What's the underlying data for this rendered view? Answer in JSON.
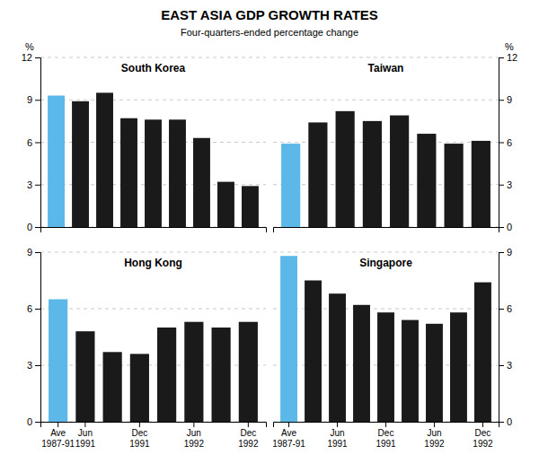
{
  "title": "EAST ASIA GDP GROWTH RATES",
  "subtitle": "Four-quarters-ended percentage change",
  "chart_data": [
    {
      "type": "bar",
      "title": "South Korea",
      "ylabel": "%",
      "categories": [
        null,
        null,
        null,
        null,
        null,
        null,
        null,
        null,
        null
      ],
      "values": [
        9.3,
        8.9,
        9.5,
        7.7,
        7.6,
        7.6,
        6.3,
        3.2,
        2.9
      ],
      "colors": [
        "#5bb8e8",
        "#1a1a1a",
        "#1a1a1a",
        "#1a1a1a",
        "#1a1a1a",
        "#1a1a1a",
        "#1a1a1a",
        "#1a1a1a",
        "#1a1a1a"
      ],
      "ylim": [
        0,
        12
      ],
      "yticks": [
        0,
        3,
        6,
        9,
        12
      ],
      "grid": true,
      "tick_labels": "y"
    },
    {
      "type": "bar",
      "title": "Taiwan",
      "ylabel": "%",
      "categories": [
        null,
        null,
        null,
        null,
        null,
        null,
        null,
        null
      ],
      "values": [
        5.9,
        7.4,
        8.2,
        7.5,
        7.9,
        6.6,
        5.9,
        6.1
      ],
      "colors": [
        "#5bb8e8",
        "#1a1a1a",
        "#1a1a1a",
        "#1a1a1a",
        "#1a1a1a",
        "#1a1a1a",
        "#1a1a1a",
        "#1a1a1a"
      ],
      "ylim": [
        0,
        12
      ],
      "yticks": [
        0,
        3,
        6,
        9,
        12
      ],
      "grid": true,
      "tick_labels": "y"
    },
    {
      "type": "bar",
      "title": "Hong Kong",
      "categories": [
        "Ave\n1987-91",
        "Jun\n1991",
        null,
        "Dec\n1991",
        null,
        "Jun\n1992",
        null,
        "Dec\n1992"
      ],
      "values": [
        6.5,
        4.8,
        3.7,
        3.6,
        5.0,
        5.3,
        5.0,
        5.3
      ],
      "colors": [
        "#5bb8e8",
        "#1a1a1a",
        "#1a1a1a",
        "#1a1a1a",
        "#1a1a1a",
        "#1a1a1a",
        "#1a1a1a",
        "#1a1a1a"
      ],
      "ylim": [
        0,
        9
      ],
      "yticks": [
        0,
        3,
        6,
        9
      ],
      "grid": true
    },
    {
      "type": "bar",
      "title": "Singapore",
      "categories": [
        "Ave\n1987-91",
        null,
        "Jun\n1991",
        null,
        "Dec\n1991",
        null,
        "Jun\n1992",
        null,
        "Dec\n1992"
      ],
      "values": [
        8.8,
        7.5,
        6.8,
        6.2,
        5.8,
        5.4,
        5.2,
        5.8,
        7.4
      ],
      "colors": [
        "#5bb8e8",
        "#1a1a1a",
        "#1a1a1a",
        "#1a1a1a",
        "#1a1a1a",
        "#1a1a1a",
        "#1a1a1a",
        "#1a1a1a",
        "#1a1a1a"
      ],
      "ylim": [
        0,
        9
      ],
      "yticks": [
        0,
        3,
        6,
        9
      ],
      "grid": true
    }
  ]
}
